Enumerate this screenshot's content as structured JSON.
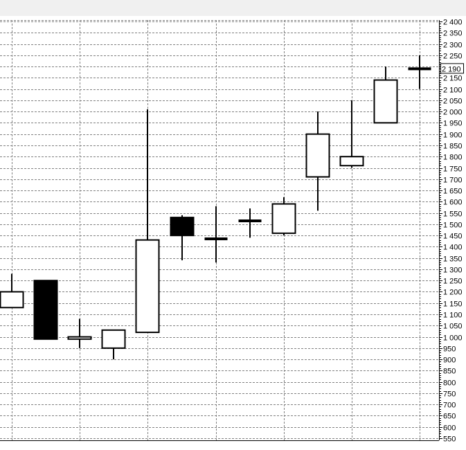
{
  "chart_data": {
    "type": "candlestick",
    "title": "",
    "xlabel": "",
    "ylabel": "",
    "ylim": [
      550,
      2400
    ],
    "y_tick_step": 50,
    "y_axis_position": "right",
    "grid": true,
    "current_price_label": "2 190",
    "colors": {
      "up": "#ffffff",
      "down": "#000000",
      "outline": "#000000",
      "grid": "#808080",
      "header": "#f0f0f0"
    },
    "candles": [
      {
        "open": 1130,
        "high": 1280,
        "low": 1130,
        "close": 1200
      },
      {
        "open": 1250,
        "high": 1250,
        "low": 990,
        "close": 990
      },
      {
        "open": 990,
        "high": 1080,
        "low": 950,
        "close": 1000
      },
      {
        "open": 950,
        "high": 1030,
        "low": 900,
        "close": 1030
      },
      {
        "open": 1020,
        "high": 2010,
        "low": 1020,
        "close": 1430
      },
      {
        "open": 1530,
        "high": 1540,
        "low": 1340,
        "close": 1450
      },
      {
        "open": 1435,
        "high": 1580,
        "low": 1330,
        "close": 1435
      },
      {
        "open": 1515,
        "high": 1570,
        "low": 1440,
        "close": 1515
      },
      {
        "open": 1460,
        "high": 1620,
        "low": 1450,
        "close": 1590
      },
      {
        "open": 1710,
        "high": 2000,
        "low": 1560,
        "close": 1900
      },
      {
        "open": 1760,
        "high": 2050,
        "low": 1750,
        "close": 1800
      },
      {
        "open": 1950,
        "high": 2200,
        "low": 1950,
        "close": 2140
      },
      {
        "open": 2190,
        "high": 2250,
        "low": 2100,
        "close": 2190
      }
    ]
  }
}
